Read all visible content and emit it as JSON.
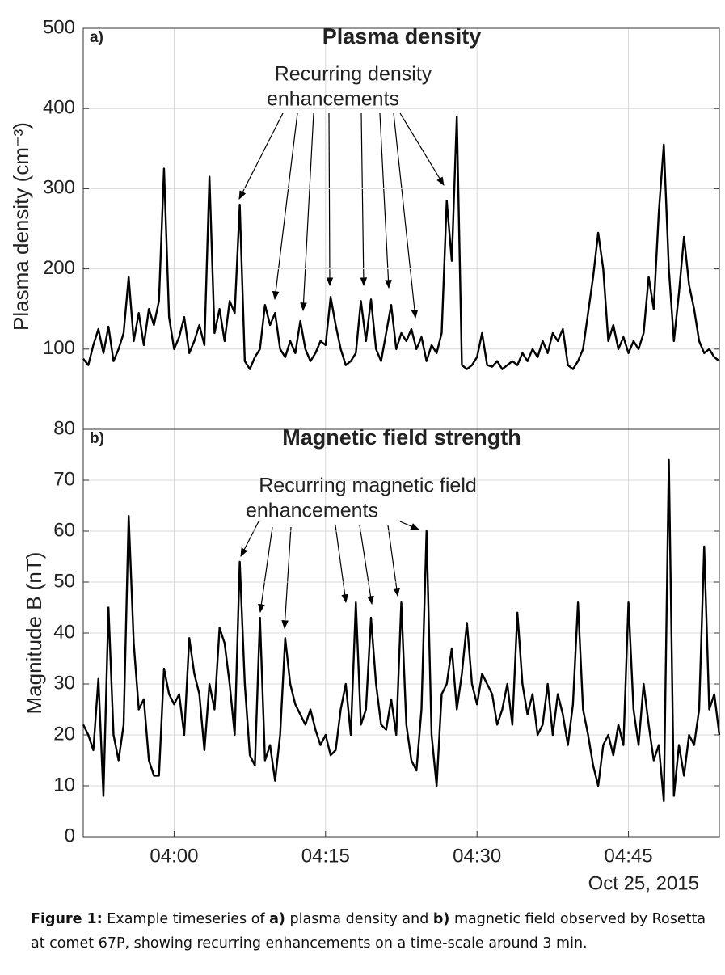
{
  "chart_data": {
    "type": "line",
    "x": [
      "03:51:00",
      "03:51:30",
      "03:52:00",
      "03:52:30",
      "03:53:00",
      "03:53:30",
      "03:54:00",
      "03:54:30",
      "03:55:00",
      "03:55:30",
      "03:56:00",
      "03:56:30",
      "03:57:00",
      "03:57:30",
      "03:58:00",
      "03:58:30",
      "03:59:00",
      "03:59:30",
      "04:00:00",
      "04:00:30",
      "04:01:00",
      "04:01:30",
      "04:02:00",
      "04:02:30",
      "04:03:00",
      "04:03:30",
      "04:04:00",
      "04:04:30",
      "04:05:00",
      "04:05:30",
      "04:06:00",
      "04:06:30",
      "04:07:00",
      "04:07:30",
      "04:08:00",
      "04:08:30",
      "04:09:00",
      "04:09:30",
      "04:10:00",
      "04:10:30",
      "04:11:00",
      "04:11:30",
      "04:12:00",
      "04:12:30",
      "04:13:00",
      "04:13:30",
      "04:14:00",
      "04:14:30",
      "04:15:00",
      "04:15:30",
      "04:16:00",
      "04:16:30",
      "04:17:00",
      "04:17:30",
      "04:18:00",
      "04:18:30",
      "04:19:00",
      "04:19:30",
      "04:20:00",
      "04:20:30",
      "04:21:00",
      "04:21:30",
      "04:22:00",
      "04:22:30",
      "04:23:00",
      "04:23:30",
      "04:24:00",
      "04:24:30",
      "04:25:00",
      "04:25:30",
      "04:26:00",
      "04:26:30",
      "04:27:00",
      "04:27:30",
      "04:28:00",
      "04:28:30",
      "04:29:00",
      "04:29:30",
      "04:30:00",
      "04:30:30",
      "04:31:00",
      "04:31:30",
      "04:32:00",
      "04:32:30",
      "04:33:00",
      "04:33:30",
      "04:34:00",
      "04:34:30",
      "04:35:00",
      "04:35:30",
      "04:36:00",
      "04:36:30",
      "04:37:00",
      "04:37:30",
      "04:38:00",
      "04:38:30",
      "04:39:00",
      "04:39:30",
      "04:40:00",
      "04:40:30",
      "04:41:00",
      "04:41:30",
      "04:42:00",
      "04:42:30",
      "04:43:00",
      "04:43:30",
      "04:44:00",
      "04:44:30",
      "04:45:00",
      "04:45:30",
      "04:46:00",
      "04:46:30",
      "04:47:00",
      "04:47:30",
      "04:48:00",
      "04:48:30",
      "04:49:00",
      "04:49:30",
      "04:50:00",
      "04:50:30",
      "04:51:00",
      "04:51:30",
      "04:52:00",
      "04:52:30",
      "04:53:00",
      "04:53:30",
      "04:54:00"
    ],
    "xlim": [
      "03:51:00",
      "04:54:00"
    ],
    "xticks": [
      "04:00",
      "04:15",
      "04:30",
      "04:45"
    ],
    "x_date_label": "Oct 25, 2015",
    "grid": true,
    "panels": [
      {
        "panel_label": "a)",
        "title": "Plasma density",
        "ylabel": "Plasma density (cm⁻³)",
        "ylim": [
          0,
          500
        ],
        "yticks": [
          100,
          200,
          300,
          400,
          500
        ],
        "annotation": {
          "lines": [
            "Recurring density",
            "enhancements"
          ]
        },
        "series": [
          {
            "name": "Plasma density",
            "color": "#000000",
            "values": [
              88,
              80,
              105,
              125,
              95,
              128,
              85,
              100,
              120,
              190,
              110,
              145,
              105,
              150,
              130,
              160,
              325,
              140,
              100,
              115,
              140,
              95,
              110,
              130,
              105,
              315,
              120,
              150,
              110,
              160,
              145,
              280,
              85,
              75,
              90,
              100,
              155,
              130,
              145,
              100,
              90,
              110,
              95,
              135,
              100,
              85,
              95,
              110,
              105,
              165,
              130,
              100,
              80,
              85,
              95,
              160,
              110,
              162,
              100,
              85,
              120,
              155,
              100,
              120,
              110,
              125,
              100,
              115,
              85,
              105,
              95,
              120,
              285,
              210,
              390,
              80,
              75,
              80,
              90,
              120,
              80,
              78,
              85,
              75,
              80,
              85,
              80,
              95,
              85,
              100,
              90,
              110,
              95,
              120,
              110,
              125,
              80,
              75,
              85,
              100,
              145,
              190,
              245,
              200,
              110,
              130,
              100,
              115,
              95,
              110,
              100,
              120,
              190,
              150,
              270,
              355,
              200,
              110,
              170,
              240,
              180,
              150,
              110,
              95,
              100,
              90,
              85
            ]
          }
        ]
      },
      {
        "panel_label": "b)",
        "title": "Magnetic field strength",
        "ylabel": "Magnitude B (nT)",
        "ylim": [
          0,
          80
        ],
        "yticks": [
          0,
          10,
          20,
          30,
          40,
          50,
          60,
          70,
          80
        ],
        "annotation": {
          "lines": [
            "Recurring magnetic field",
            "enhancements"
          ]
        },
        "series": [
          {
            "name": "Magnitude B",
            "color": "#000000",
            "values": [
              22,
              20,
              17,
              31,
              8,
              45,
              20,
              15,
              22,
              63,
              38,
              25,
              27,
              15,
              12,
              12,
              33,
              28,
              26,
              28,
              20,
              39,
              32,
              28,
              17,
              30,
              25,
              41,
              38,
              30,
              20,
              54,
              30,
              16,
              14,
              43,
              15,
              18,
              11,
              20,
              39,
              30,
              26,
              24,
              22,
              25,
              21,
              18,
              20,
              16,
              17,
              25,
              30,
              20,
              46,
              22,
              25,
              43,
              30,
              22,
              21,
              27,
              20,
              46,
              22,
              15,
              13,
              25,
              60,
              20,
              10,
              28,
              30,
              37,
              25,
              32,
              42,
              30,
              26,
              32,
              30,
              28,
              22,
              25,
              30,
              22,
              44,
              30,
              24,
              28,
              20,
              22,
              30,
              20,
              28,
              24,
              18,
              26,
              46,
              25,
              20,
              14,
              10,
              18,
              20,
              16,
              22,
              18,
              46,
              25,
              18,
              30,
              22,
              15,
              18,
              7,
              74,
              8,
              18,
              12,
              20,
              18,
              25,
              57,
              25,
              28,
              20
            ]
          }
        ]
      }
    ],
    "caption": [
      {
        "text": "Figure 1:",
        "bold": true
      },
      {
        "text": " Example timeseries of ",
        "bold": false
      },
      {
        "text": "a)",
        "bold": true
      },
      {
        "text": " plasma density and ",
        "bold": false
      },
      {
        "text": "b)",
        "bold": true
      },
      {
        "text": " magnetic field observed by Rosetta at comet 67P, showing recurring enhancements on a time-scale around 3 min.",
        "bold": false
      }
    ]
  }
}
